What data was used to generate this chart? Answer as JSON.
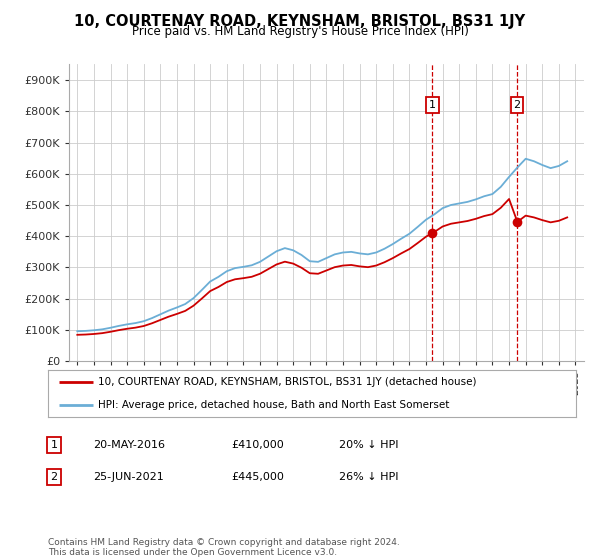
{
  "title": "10, COURTENAY ROAD, KEYNSHAM, BRISTOL, BS31 1JY",
  "subtitle": "Price paid vs. HM Land Registry's House Price Index (HPI)",
  "legend_line1": "10, COURTENAY ROAD, KEYNSHAM, BRISTOL, BS31 1JY (detached house)",
  "legend_line2": "HPI: Average price, detached house, Bath and North East Somerset",
  "footnote": "Contains HM Land Registry data © Crown copyright and database right 2024.\nThis data is licensed under the Open Government Licence v3.0.",
  "transaction1_label": "1",
  "transaction1_date": "20-MAY-2016",
  "transaction1_price": "£410,000",
  "transaction1_hpi": "20% ↓ HPI",
  "transaction2_label": "2",
  "transaction2_date": "25-JUN-2021",
  "transaction2_price": "£445,000",
  "transaction2_hpi": "26% ↓ HPI",
  "transaction1_x": 2016.38,
  "transaction1_y": 410000,
  "transaction2_x": 2021.48,
  "transaction2_y": 445000,
  "hpi_color": "#6baed6",
  "price_color": "#cc0000",
  "marker_color": "#cc0000",
  "dashed_line_color": "#cc0000",
  "background_color": "#ffffff",
  "grid_color": "#cccccc",
  "ylim": [
    0,
    950000
  ],
  "xlim": [
    1994.5,
    2025.5
  ],
  "years_hpi": [
    1995.0,
    1995.5,
    1996.0,
    1996.5,
    1997.0,
    1997.5,
    1998.0,
    1998.5,
    1999.0,
    1999.5,
    2000.0,
    2000.5,
    2001.0,
    2001.5,
    2002.0,
    2002.5,
    2003.0,
    2003.5,
    2004.0,
    2004.5,
    2005.0,
    2005.5,
    2006.0,
    2006.5,
    2007.0,
    2007.5,
    2008.0,
    2008.5,
    2009.0,
    2009.5,
    2010.0,
    2010.5,
    2011.0,
    2011.5,
    2012.0,
    2012.5,
    2013.0,
    2013.5,
    2014.0,
    2014.5,
    2015.0,
    2015.5,
    2016.0,
    2016.5,
    2017.0,
    2017.5,
    2018.0,
    2018.5,
    2019.0,
    2019.5,
    2020.0,
    2020.5,
    2021.0,
    2021.5,
    2022.0,
    2022.5,
    2023.0,
    2023.5,
    2024.0,
    2024.5
  ],
  "hpi_values": [
    96000,
    97000,
    99000,
    102000,
    107000,
    113000,
    118000,
    122000,
    128000,
    138000,
    150000,
    162000,
    172000,
    183000,
    202000,
    228000,
    255000,
    270000,
    288000,
    298000,
    302000,
    307000,
    318000,
    335000,
    352000,
    362000,
    355000,
    340000,
    320000,
    318000,
    330000,
    342000,
    348000,
    350000,
    345000,
    342000,
    348000,
    360000,
    375000,
    392000,
    408000,
    430000,
    453000,
    470000,
    490000,
    500000,
    505000,
    510000,
    518000,
    528000,
    535000,
    558000,
    590000,
    620000,
    648000,
    640000,
    628000,
    618000,
    625000,
    640000
  ]
}
